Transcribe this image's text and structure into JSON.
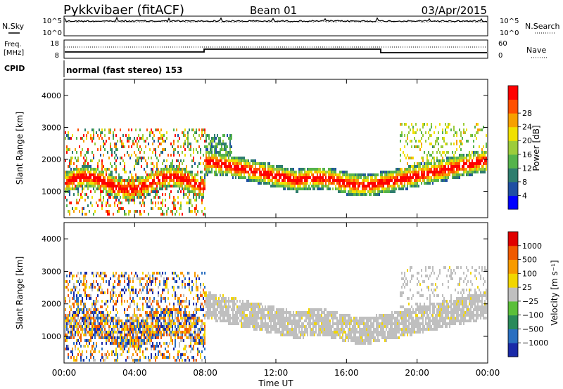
{
  "header": {
    "station": "Pykkvibaer (fitACF)",
    "beam": "Beam 01",
    "date": "03/Apr/2015"
  },
  "noise_panel": {
    "left_label": "N.Sky",
    "right_label": "N.Search",
    "left_ticks": [
      "10^5",
      "10^0"
    ],
    "right_ticks": [
      "10^5",
      "10^0"
    ]
  },
  "freq_panel": {
    "left_label_1": "Freq.",
    "left_label_2": "[MHz]",
    "right_label": "Nave",
    "left_ticks": [
      "18",
      "8"
    ],
    "right_ticks": [
      "60",
      "0"
    ]
  },
  "cpid": {
    "label": "CPID",
    "text": "normal (fast stereo) 153"
  },
  "chart_data": [
    {
      "type": "heatmap",
      "name": "power",
      "ylabel": "Slant Range [km]",
      "y_ticks": [
        "1000",
        "2000",
        "3000",
        "4000"
      ],
      "y_tick_values": [
        1000,
        2000,
        3000,
        4000
      ],
      "ylim": [
        180,
        4500
      ],
      "x_ticks": [
        "00:00",
        "04:00",
        "08:00",
        "12:00",
        "16:00",
        "20:00",
        "00:00"
      ],
      "x_tick_hours": [
        0,
        4,
        8,
        12,
        16,
        20,
        24
      ],
      "xlim": [
        0,
        24
      ],
      "colorbar": {
        "label": "Power [dB]",
        "tick_labels": [
          "4",
          "8",
          "12",
          "16",
          "20",
          "24",
          "28"
        ],
        "colors": [
          "#0000ff",
          "#1f4fa3",
          "#2e7d6e",
          "#55b34b",
          "#9ccc3b",
          "#f0e000",
          "#f7a000",
          "#ff5000",
          "#ff0000"
        ]
      }
    },
    {
      "type": "heatmap",
      "name": "velocity",
      "ylabel": "Slant Range [km]",
      "y_ticks": [
        "1000",
        "2000",
        "3000",
        "4000"
      ],
      "y_tick_values": [
        1000,
        2000,
        3000,
        4000
      ],
      "ylim": [
        180,
        4500
      ],
      "x_ticks": [
        "00:00",
        "04:00",
        "08:00",
        "12:00",
        "16:00",
        "20:00",
        "00:00"
      ],
      "x_tick_hours": [
        0,
        4,
        8,
        12,
        16,
        20,
        24
      ],
      "xlim": [
        0,
        24
      ],
      "xlabel": "Time UT",
      "colorbar": {
        "label": "Velocity [m s⁻¹]",
        "tick_labels": [
          "1000",
          "500",
          "100",
          "25",
          "−25",
          "−100",
          "−500",
          "−1000"
        ],
        "colors": [
          "#1a2aa8",
          "#2a6fc0",
          "#2a8a5a",
          "#5bbf3a",
          "#bfbfbf",
          "#f2d600",
          "#f79a00",
          "#f05a00",
          "#e00000"
        ]
      }
    }
  ]
}
